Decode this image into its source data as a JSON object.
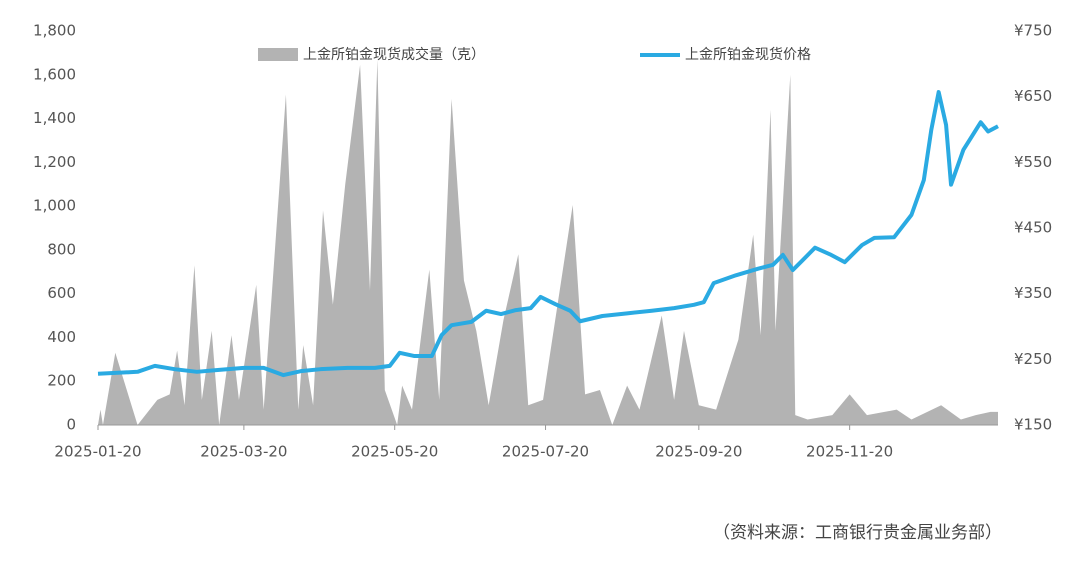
{
  "chart_data": {
    "type": "area-line",
    "source": "（资料来源：工商银行贵金属业务部）",
    "xlim": [
      "2025-01-20",
      "2026-01-19"
    ],
    "xticks": [
      "2025-01-20",
      "2025-03-20",
      "2025-05-20",
      "2025-07-20",
      "2025-09-20",
      "2025-11-20"
    ],
    "ylim": [
      0,
      1800
    ],
    "yticks": [
      0,
      200,
      400,
      600,
      800,
      {
        "value": 1000,
        "label": "1,000"
      },
      {
        "value": 1200,
        "label": "1,200"
      },
      {
        "value": 1400,
        "label": "1,400"
      },
      {
        "value": 1600,
        "label": "1,600"
      },
      {
        "value": 1800,
        "label": "1,800"
      }
    ],
    "y2lim": [
      150,
      750
    ],
    "y2ticks": [
      {
        "value": 150,
        "label": "¥150"
      },
      {
        "value": 250,
        "label": "¥250"
      },
      {
        "value": 350,
        "label": "¥350"
      },
      {
        "value": 450,
        "label": "¥450"
      },
      {
        "value": 550,
        "label": "¥550"
      },
      {
        "value": 650,
        "label": "¥650"
      },
      {
        "value": 750,
        "label": "¥750"
      }
    ],
    "series": [
      {
        "name": "上金所铂金现货成交量（克）",
        "color": "#b3b3b3",
        "kind": "area",
        "x": [
          "2025-01-20",
          "2025-01-21",
          "2025-01-22",
          "2025-01-27",
          "2025-02-05",
          "2025-02-13",
          "2025-02-18",
          "2025-02-21",
          "2025-02-24",
          "2025-02-28",
          "2025-03-03",
          "2025-03-07",
          "2025-03-10",
          "2025-03-15",
          "2025-03-18",
          "2025-03-25",
          "2025-03-28",
          "2025-04-06",
          "2025-04-11",
          "2025-04-13",
          "2025-04-17",
          "2025-04-21",
          "2025-04-25",
          "2025-04-30",
          "2025-05-06",
          "2025-05-10",
          "2025-05-13",
          "2025-05-16",
          "2025-05-21",
          "2025-05-23",
          "2025-05-27",
          "2025-06-03",
          "2025-06-07",
          "2025-06-12",
          "2025-06-17",
          "2025-06-22",
          "2025-06-27",
          "2025-07-03",
          "2025-07-09",
          "2025-07-13",
          "2025-07-19",
          "2025-07-31",
          "2025-08-05",
          "2025-08-11",
          "2025-08-16",
          "2025-08-22",
          "2025-08-27",
          "2025-09-05",
          "2025-09-10",
          "2025-09-14",
          "2025-09-20",
          "2025-09-27",
          "2025-10-06",
          "2025-10-12",
          "2025-10-15",
          "2025-10-19",
          "2025-10-21",
          "2025-10-27",
          "2025-10-29",
          "2025-11-03",
          "2025-11-13",
          "2025-11-20",
          "2025-11-27",
          "2025-12-09",
          "2025-12-15",
          "2025-12-27",
          "2026-01-04",
          "2026-01-10",
          "2026-01-16",
          "2026-01-19"
        ],
        "values": [
          0,
          70,
          0,
          330,
          0,
          115,
          140,
          340,
          90,
          730,
          115,
          430,
          0,
          410,
          115,
          640,
          70,
          1510,
          70,
          365,
          90,
          980,
          550,
          1100,
          1645,
          615,
          1670,
          160,
          0,
          180,
          70,
          710,
          115,
          1490,
          660,
          430,
          90,
          480,
          780,
          90,
          115,
          1005,
          140,
          160,
          0,
          180,
          70,
          500,
          115,
          430,
          90,
          70,
          390,
          870,
          410,
          1440,
          430,
          1600,
          45,
          25,
          45,
          140,
          45,
          70,
          25,
          90,
          25,
          45,
          60,
          60
        ]
      },
      {
        "name": "上金所铂金现货价格",
        "color": "#2aaae2",
        "kind": "line",
        "axis": "y2",
        "x": [
          "2025-01-20",
          "2025-02-05",
          "2025-02-12",
          "2025-02-20",
          "2025-03-01",
          "2025-03-10",
          "2025-03-20",
          "2025-03-28",
          "2025-04-05",
          "2025-04-12",
          "2025-04-20",
          "2025-05-01",
          "2025-05-12",
          "2025-05-18",
          "2025-05-22",
          "2025-05-28",
          "2025-06-04",
          "2025-06-08",
          "2025-06-12",
          "2025-06-20",
          "2025-06-26",
          "2025-07-02",
          "2025-07-08",
          "2025-07-14",
          "2025-07-18",
          "2025-07-24",
          "2025-07-30",
          "2025-08-03",
          "2025-08-12",
          "2025-08-22",
          "2025-09-01",
          "2025-09-10",
          "2025-09-18",
          "2025-09-22",
          "2025-09-26",
          "2025-10-05",
          "2025-10-14",
          "2025-10-20",
          "2025-10-24",
          "2025-10-28",
          "2025-11-01",
          "2025-11-06",
          "2025-11-12",
          "2025-11-18",
          "2025-11-25",
          "2025-11-30",
          "2025-12-08",
          "2025-12-15",
          "2025-12-20",
          "2025-12-23",
          "2025-12-26",
          "2025-12-29",
          "2025-12-31",
          "2026-01-05",
          "2026-01-08",
          "2026-01-12",
          "2026-01-15",
          "2026-01-19"
        ],
        "values": [
          228,
          231,
          240,
          235,
          231,
          234,
          237,
          237,
          226,
          232,
          235,
          237,
          237,
          240,
          260,
          255,
          255,
          287,
          302,
          307,
          324,
          319,
          325,
          328,
          345,
          334,
          324,
          308,
          316,
          320,
          324,
          328,
          333,
          337,
          366,
          378,
          388,
          394,
          409,
          386,
          401,
          420,
          410,
          398,
          424,
          435,
          436,
          470,
          523,
          599,
          657,
          607,
          516,
          569,
          587,
          611,
          597,
          605
        ]
      }
    ]
  }
}
